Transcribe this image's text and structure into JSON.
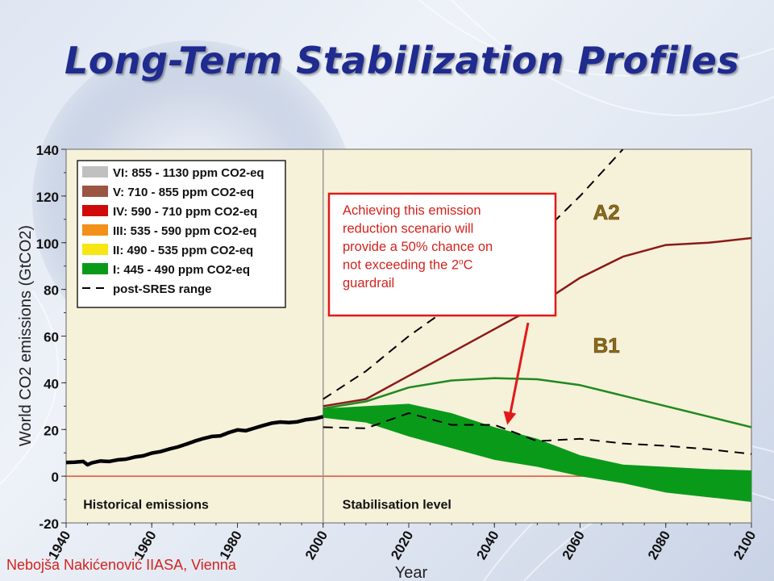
{
  "slide": {
    "title": "Long-Term Stabilization Profiles",
    "credit": "Nebojša Nakićenović IIASA, Vienna"
  },
  "colors": {
    "background_plot": "#f6f1d9",
    "title": "#1f2b8f",
    "historical": "#000000",
    "A2": "#8b1a1a",
    "B1": "#1f8a1f",
    "band": "#0a9a1a",
    "post_sres": "#000000",
    "zero_line": "#e05040",
    "callout_border": "#e0191b",
    "callout_text": "#d3231e",
    "arrow": "#e0191b"
  },
  "chart_data": {
    "type": "line",
    "title": "",
    "xlabel": "Year",
    "ylabel": "World CO2 emissions (GtCO2)",
    "xlim": [
      1940,
      2100
    ],
    "ylim": [
      -20,
      140
    ],
    "x_ticks": [
      "1940",
      "1960",
      "1980",
      "2000",
      "2020",
      "2040",
      "2060",
      "2080",
      "2100"
    ],
    "y_ticks": [
      "140",
      "120",
      "100",
      "80",
      "60",
      "40",
      "20",
      "0",
      "-20"
    ],
    "grid": false,
    "legend_position": "top-left",
    "legend": [
      {
        "label": "VI: 855 - 1130 ppm CO2-eq",
        "color": "#c0c0c0",
        "kind": "swatch"
      },
      {
        "label": "V: 710 - 855 ppm CO2-eq",
        "color": "#9a5543",
        "kind": "swatch"
      },
      {
        "label": "IV: 590 - 710 ppm CO2-eq",
        "color": "#d00a0a",
        "kind": "swatch"
      },
      {
        "label": "III: 535 - 590 ppm CO2-eq",
        "color": "#f39019",
        "kind": "swatch"
      },
      {
        "label": "II: 490 - 535 ppm CO2-eq",
        "color": "#f7e614",
        "kind": "swatch"
      },
      {
        "label": "I: 445 - 490 ppm CO2-eq",
        "color": "#0a9a1a",
        "kind": "swatch"
      },
      {
        "label": "post-SRES range",
        "color": "#000000",
        "kind": "dash"
      }
    ],
    "region_labels": {
      "historical": "Historical emissions",
      "stabilisation": "Stabilisation level"
    },
    "divider_year": 2000,
    "series": [
      {
        "name": "Historical emissions",
        "x": [
          1940,
          1942,
          1944,
          1945,
          1946,
          1948,
          1950,
          1952,
          1954,
          1956,
          1958,
          1960,
          1962,
          1964,
          1966,
          1968,
          1970,
          1972,
          1974,
          1976,
          1978,
          1980,
          1982,
          1984,
          1986,
          1988,
          1990,
          1992,
          1994,
          1996,
          1998,
          2000
        ],
        "y": [
          5.9,
          6.0,
          6.3,
          4.9,
          5.7,
          6.5,
          6.3,
          7.0,
          7.3,
          8.2,
          8.7,
          9.9,
          10.5,
          11.6,
          12.5,
          13.7,
          15.0,
          16.1,
          17.0,
          17.3,
          18.7,
          19.8,
          19.5,
          20.6,
          21.7,
          22.7,
          23.2,
          23.0,
          23.3,
          24.2,
          24.6,
          25.5
        ]
      },
      {
        "name": "A2",
        "x": [
          2000,
          2010,
          2020,
          2030,
          2040,
          2050,
          2060,
          2070,
          2080,
          2090,
          2100
        ],
        "y": [
          30,
          33,
          43,
          53,
          63,
          73,
          85,
          94,
          99,
          100,
          102
        ]
      },
      {
        "name": "B1",
        "x": [
          2000,
          2010,
          2020,
          2030,
          2040,
          2050,
          2060,
          2070,
          2080,
          2090,
          2100
        ],
        "y": [
          29,
          32,
          38,
          41,
          42,
          41.5,
          39,
          34.5,
          30,
          25.5,
          21
        ]
      },
      {
        "name": "post-SRES range (upper)",
        "x": [
          2000,
          2010,
          2020,
          2030,
          2040,
          2050,
          2060,
          2070
        ],
        "y": [
          33,
          45,
          60,
          73,
          88,
          102,
          120,
          140
        ]
      },
      {
        "name": "post-SRES range (lower)",
        "x": [
          2000,
          2010,
          2020,
          2030,
          2040,
          2050,
          2060,
          2070,
          2080,
          2090,
          2100
        ],
        "y": [
          21,
          20.5,
          27,
          22,
          22,
          15,
          16,
          14,
          13,
          11.5,
          9.5
        ]
      }
    ],
    "band": {
      "name": "I: 445 - 490 ppm CO2-eq",
      "x": [
        2000,
        2010,
        2020,
        2030,
        2040,
        2050,
        2060,
        2070,
        2080,
        2090,
        2100
      ],
      "upper": [
        29,
        30,
        31,
        27,
        21,
        16,
        9,
        5,
        4,
        3,
        2.5
      ],
      "lower": [
        25,
        23,
        17,
        12,
        7,
        4,
        0,
        -3,
        -7,
        -9,
        -11
      ]
    },
    "series_labels": [
      {
        "text": "A2",
        "x": 2063,
        "y": 110
      },
      {
        "text": "B1",
        "x": 2063,
        "y": 53
      }
    ],
    "annotation": {
      "text_lines": [
        "Achieving this emission",
        "reduction scenario will",
        "provide a 50% chance on",
        "not exceeding the 2"
      ],
      "superscript": "o",
      "after_superscript": "C",
      "last_line": "guardrail",
      "arrow_to": {
        "x": 2043,
        "y": 22
      }
    }
  }
}
